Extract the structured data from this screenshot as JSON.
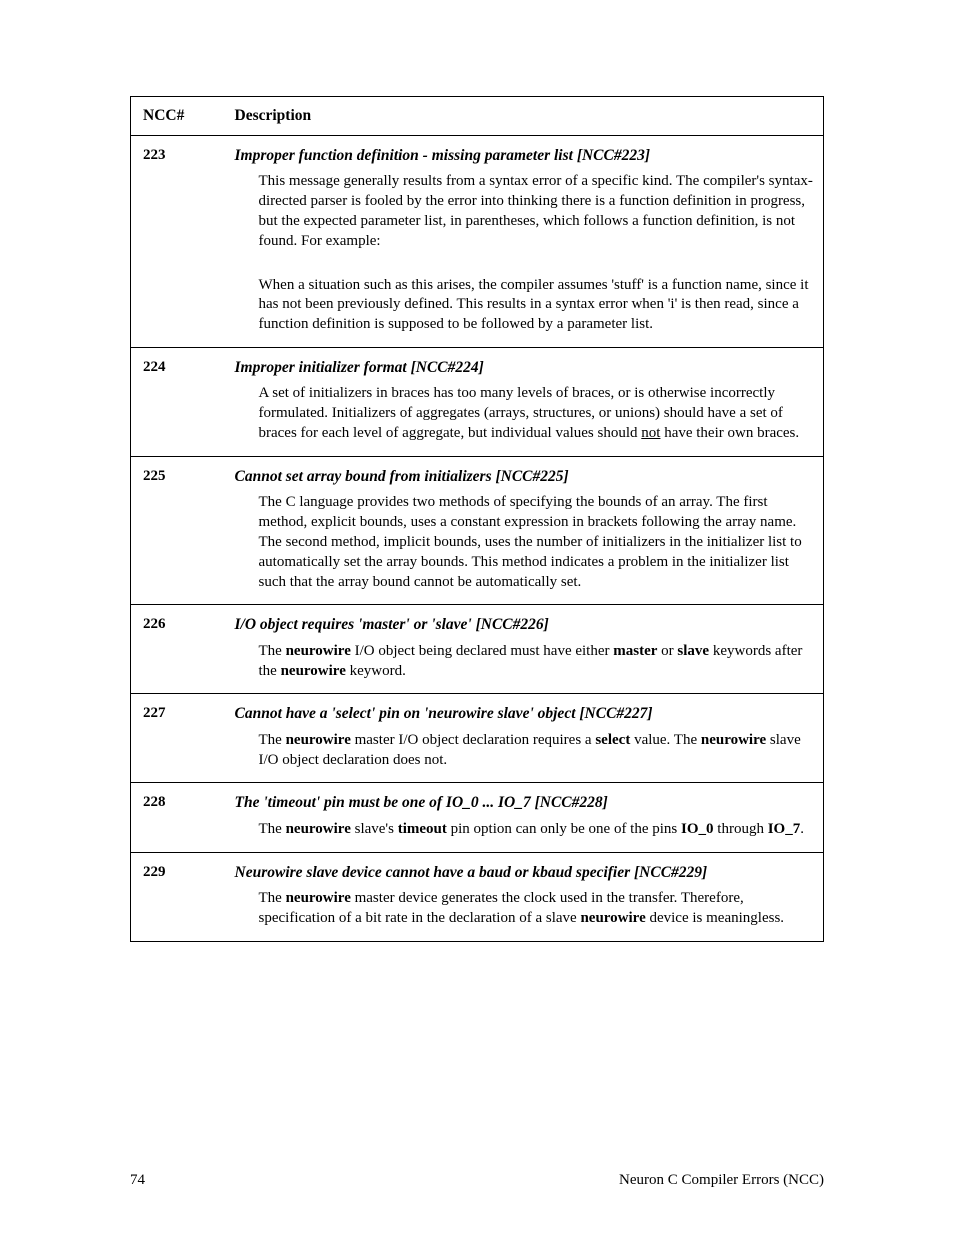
{
  "headers": {
    "ncc": "NCC#",
    "desc": "Description"
  },
  "rows": [
    {
      "num": "223",
      "title": "Improper function definition - missing parameter list [NCC#223]",
      "paras": [
        "This message generally results from a syntax error of a specific kind.  The compiler's syntax-directed parser is fooled by the error into thinking there is a function definition in progress, but the expected parameter list, in parentheses, which follows a function definition, is not found.  For example:",
        "__GAP__",
        "When a situation such as this arises, the compiler assumes 'stuff' is a function name, since it has not been previously defined.  This results in a syntax error when 'i' is then read, since a function definition is supposed to be followed by a parameter list."
      ]
    },
    {
      "num": "224",
      "title": "Improper initializer format [NCC#224]",
      "paras": [
        "A set of initializers in braces has too many levels of braces, or is otherwise incorrectly formulated.  Initializers of aggregates (arrays, structures, or unions) should have a set of braces for each level of aggregate, but individual values should <u>not</u> have their own braces."
      ]
    },
    {
      "num": "225",
      "title": "Cannot set array bound from initializers [NCC#225]",
      "paras": [
        "The C language provides two methods of specifying the bounds of an array.  The first method, explicit bounds, uses a constant expression in brackets following the array name.  The second method, implicit bounds, uses the number of initializers in the initializer list to automatically set the array bounds.  This method indicates a problem in the initializer list such that the array bound cannot be automatically set."
      ]
    },
    {
      "num": "226",
      "title": "I/O object requires 'master' or 'slave' [NCC#226]",
      "paras": [
        "The <b>neurowire</b> I/O object being declared must have either <b>master</b> or <b>slave</b> keywords after the <b>neurowire</b> keyword."
      ]
    },
    {
      "num": "227",
      "title": "Cannot have a 'select' pin on 'neurowire slave' object [NCC#227]",
      "paras": [
        "The <b>neurowire</b> master I/O object declaration requires a <b>select</b> value.  The <b>neurowire</b> slave I/O object declaration does not."
      ]
    },
    {
      "num": "228",
      "title": "The 'timeout' pin must be one of IO_0 ...  IO_7 [NCC#228]",
      "paras": [
        "The <b>neurowire</b> slave's <b>timeout</b> pin option can only be one of the pins <b>IO_0</b> through <b>IO_7</b>."
      ]
    },
    {
      "num": "229",
      "title": "Neurowire slave device cannot have a baud or kbaud specifier [NCC#229]",
      "paras": [
        "The <b>neurowire</b> master device generates the clock used in the transfer.  Therefore, specification of a bit rate in the declaration of a slave <b>neurowire</b> device is meaningless."
      ]
    }
  ],
  "footer": {
    "page": "74",
    "section": "Neuron C Compiler Errors (NCC)"
  }
}
